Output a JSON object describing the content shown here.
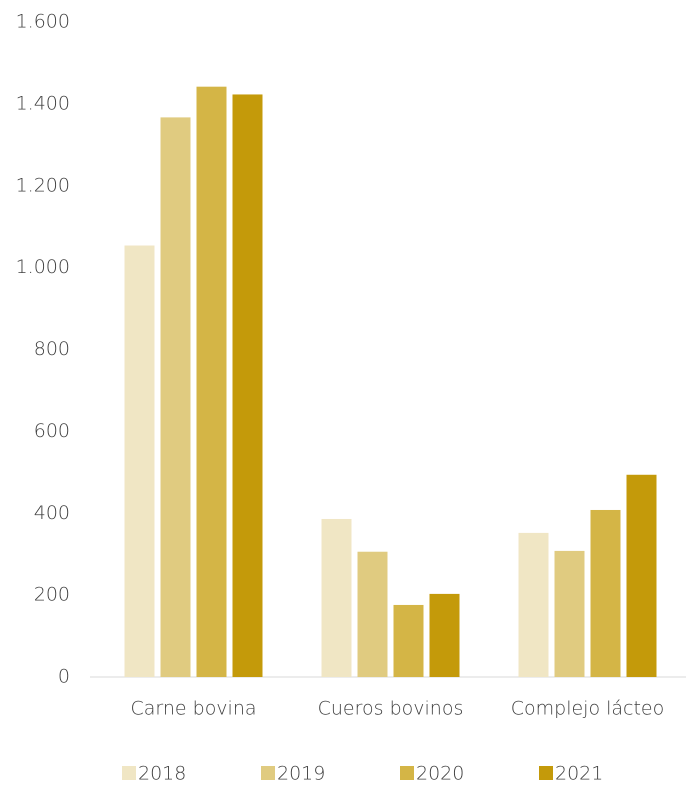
{
  "chart_data": {
    "type": "bar",
    "categories": [
      "Carne bovina",
      "Cueros bovinos",
      "Complejo lácteo"
    ],
    "series": [
      {
        "name": "2018",
        "color": "#f0e6c4",
        "values": [
          1054,
          386,
          352
        ]
      },
      {
        "name": "2019",
        "color": "#e0cb80",
        "values": [
          1367,
          306,
          308
        ]
      },
      {
        "name": "2020",
        "color": "#d4b546",
        "values": [
          1442,
          176,
          408
        ]
      },
      {
        "name": "2021",
        "color": "#c49a0a",
        "values": [
          1423,
          203,
          494
        ]
      }
    ],
    "ylim": [
      0,
      1600
    ],
    "yticks": [
      0,
      200,
      400,
      600,
      800,
      {
        "value": 1000,
        "label": "1.000"
      },
      {
        "value": 1200,
        "label": "1.200"
      },
      {
        "value": 1400,
        "label": "1.400"
      },
      {
        "value": 1600,
        "label": "1.600"
      }
    ],
    "grid": false,
    "legend": "bottom"
  }
}
